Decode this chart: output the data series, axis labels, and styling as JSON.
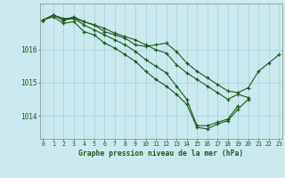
{
  "title": "Graphe pression niveau de la mer (hPa)",
  "bg_color": "#cce9f0",
  "grid_color": "#aad4dc",
  "line_color": "#1a5c1a",
  "marker_color": "#1a5c1a",
  "ylim": [
    1013.3,
    1017.4
  ],
  "xlim": [
    -0.3,
    23.3
  ],
  "yticks": [
    1014,
    1015,
    1016
  ],
  "xticks": [
    0,
    1,
    2,
    3,
    4,
    5,
    6,
    7,
    8,
    9,
    10,
    11,
    12,
    13,
    14,
    15,
    16,
    17,
    18,
    19,
    20,
    21,
    22,
    23
  ],
  "curves": [
    [
      1016.9,
      1017.05,
      1016.9,
      1017.0,
      1016.85,
      1016.75,
      1016.55,
      1016.45,
      1016.35,
      1016.15,
      1016.1,
      1016.15,
      1016.2,
      1015.95,
      1015.6,
      1015.35,
      1015.15,
      1014.95,
      1014.75,
      1014.7,
      1014.85,
      1015.35,
      1015.6,
      1015.85
    ],
    [
      1016.9,
      1017.0,
      1016.8,
      1016.85,
      1016.55,
      1016.45,
      1016.2,
      1016.05,
      1015.85,
      1015.65,
      1015.35,
      1015.1,
      1014.9,
      1014.65,
      1014.35,
      1013.65,
      1013.6,
      1013.75,
      1013.85,
      1014.2,
      1014.5,
      null,
      null,
      null
    ],
    [
      1016.9,
      1017.05,
      1016.9,
      1016.95,
      1016.75,
      1016.6,
      1016.45,
      1016.3,
      1016.15,
      1015.95,
      1015.7,
      1015.5,
      1015.3,
      1014.9,
      1014.5,
      1013.7,
      1013.7,
      1013.8,
      1013.9,
      1014.3,
      null,
      null,
      null,
      null
    ],
    [
      1016.9,
      1017.05,
      1016.95,
      1016.95,
      1016.85,
      1016.75,
      1016.65,
      1016.5,
      1016.4,
      1016.3,
      1016.15,
      1016.0,
      1015.9,
      1015.55,
      1015.3,
      1015.1,
      1014.9,
      1014.7,
      1014.5,
      1014.65,
      1014.55,
      null,
      null,
      null
    ]
  ]
}
